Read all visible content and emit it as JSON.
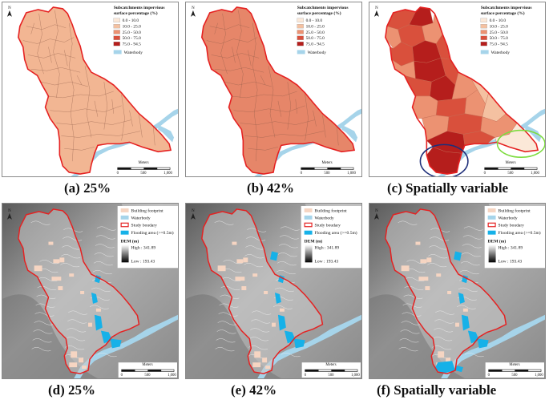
{
  "legend_top": {
    "title": "Subcatchments impervious\nsurface percentage (%)",
    "classes": [
      {
        "label": "0.0 - 10.0",
        "color": "#fbe8d8"
      },
      {
        "label": "10.0 - 25.0",
        "color": "#f4c1a1"
      },
      {
        "label": "25.0 - 50.0",
        "color": "#ec9272"
      },
      {
        "label": "50.0 - 75.0",
        "color": "#d9503c"
      },
      {
        "label": "75.0 - 94.5",
        "color": "#b51e1c"
      }
    ],
    "waterbody": {
      "label": "Waterbody",
      "color": "#a6d4ea"
    }
  },
  "legend_bottom": {
    "building": {
      "label": "Building footprint",
      "color": "#f6d5c2"
    },
    "waterbody": {
      "label": "Waterbody",
      "color": "#a6d4ea"
    },
    "boundary": {
      "label": "Study boudary",
      "color": "#e52121"
    },
    "flooding": {
      "label": "Flooding area (>=0.5m)",
      "color": "#16b1e8"
    },
    "dem_title": "DEM (m)",
    "dem_high": "High : 341.89",
    "dem_low": "Low : 193.43"
  },
  "north_label": "N",
  "scale": {
    "title": "Meters",
    "ticks": [
      "0",
      "500",
      "1,000"
    ]
  },
  "panels_top": [
    {
      "caption_letter": "(a)",
      "caption_text": " 25%",
      "fill": "#f2b693"
    },
    {
      "caption_letter": "(b)",
      "caption_text": " 42%",
      "fill": "#e68669"
    },
    {
      "caption_letter": "(c)",
      "caption_text": " Spatially variable",
      "fill": "spatial"
    }
  ],
  "panels_bottom": [
    {
      "caption_letter": "(d)",
      "caption_text": " 25%"
    },
    {
      "caption_letter": "(e)",
      "caption_text": " 42%"
    },
    {
      "caption_letter": "(f)",
      "caption_text": " Spatially variable"
    }
  ],
  "colors": {
    "boundary": "#e52121",
    "blue_circle": "#1f2f7a",
    "green_circle": "#7ddc3f",
    "river": "#a6d4ea",
    "flood": "#16b1e8"
  }
}
